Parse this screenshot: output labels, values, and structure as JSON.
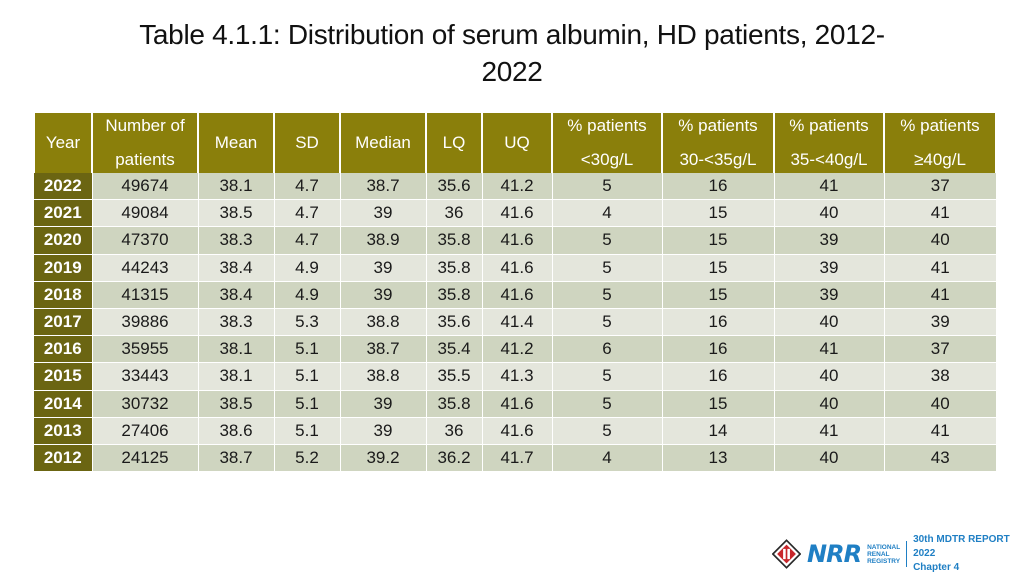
{
  "title": {
    "line1": "Table 4.1.1: Distribution of serum albumin, HD patients, 2012-",
    "line2": "2022"
  },
  "table": {
    "headers": {
      "year": "Year",
      "number_top": "Number of",
      "number_bottom": "patients",
      "mean": "Mean",
      "sd": "SD",
      "median": "Median",
      "lq": "LQ",
      "uq": "UQ",
      "p1_top": "% patients",
      "p1_bottom": "<30g/L",
      "p2_top": "% patients",
      "p2_bottom": "30-<35g/L",
      "p3_top": "% patients",
      "p3_bottom": "35-<40g/L",
      "p4_top": "% patients",
      "p4_bottom": "≥40g/L"
    },
    "rows": [
      [
        "2022",
        "49674",
        "38.1",
        "4.7",
        "38.7",
        "35.6",
        "41.2",
        "5",
        "16",
        "41",
        "37"
      ],
      [
        "2021",
        "49084",
        "38.5",
        "4.7",
        "39",
        "36",
        "41.6",
        "4",
        "15",
        "40",
        "41"
      ],
      [
        "2020",
        "47370",
        "38.3",
        "4.7",
        "38.9",
        "35.8",
        "41.6",
        "5",
        "15",
        "39",
        "40"
      ],
      [
        "2019",
        "44243",
        "38.4",
        "4.9",
        "39",
        "35.8",
        "41.6",
        "5",
        "15",
        "39",
        "41"
      ],
      [
        "2018",
        "41315",
        "38.4",
        "4.9",
        "39",
        "35.8",
        "41.6",
        "5",
        "15",
        "39",
        "41"
      ],
      [
        "2017",
        "39886",
        "38.3",
        "5.3",
        "38.8",
        "35.6",
        "41.4",
        "5",
        "16",
        "40",
        "39"
      ],
      [
        "2016",
        "35955",
        "38.1",
        "5.1",
        "38.7",
        "35.4",
        "41.2",
        "6",
        "16",
        "41",
        "37"
      ],
      [
        "2015",
        "33443",
        "38.1",
        "5.1",
        "38.8",
        "35.5",
        "41.3",
        "5",
        "16",
        "40",
        "38"
      ],
      [
        "2014",
        "30732",
        "38.5",
        "5.1",
        "39",
        "35.8",
        "41.6",
        "5",
        "15",
        "40",
        "40"
      ],
      [
        "2013",
        "27406",
        "38.6",
        "5.1",
        "39",
        "36",
        "41.6",
        "5",
        "14",
        "41",
        "41"
      ],
      [
        "2012",
        "24125",
        "38.7",
        "5.2",
        "39.2",
        "36.2",
        "41.7",
        "4",
        "13",
        "40",
        "43"
      ]
    ]
  },
  "footer": {
    "logo_text": "NRR",
    "registry_line1": "National",
    "registry_line2": "Renal",
    "registry_line3": "Registry",
    "report_line1": "30th MDTR REPORT 2022",
    "report_line2": "Chapter 4",
    "brand_color": "#1f7fc4"
  },
  "colors": {
    "header_bg": "#8a7f0b",
    "year_bg": "#6b6512",
    "row_even": "#e4e6dc",
    "row_odd": "#cfd5c0"
  }
}
